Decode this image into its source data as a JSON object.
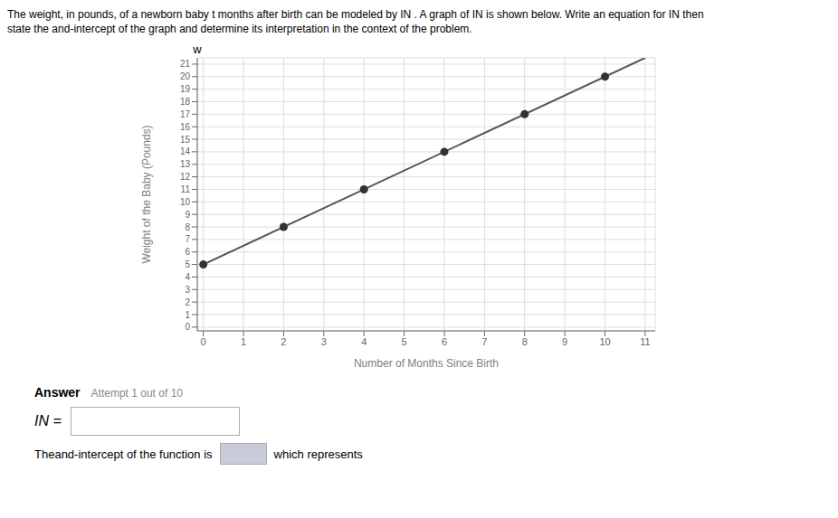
{
  "chart_data": {
    "type": "line",
    "title": "The weight, in pounds, of a newborn baby t months after birth can be modeled by IN . A graph of IN is shown below. Write an equation for IN then",
    "subtitle": "state the and-intercept of the graph and determine its interpretation in the context of the problem.",
    "xlabel": "Number of Months Since Birth",
    "ylabel": "Weight of the Baby (Pounds)",
    "series": [
      {
        "type": "line",
        "color": "#555555",
        "x": [
          0,
          11
        ],
        "values": [
          5,
          21.5
        ]
      },
      {
        "type": "scatter",
        "color": "#333333",
        "x": [
          0,
          2,
          4,
          6,
          8,
          10
        ],
        "values": [
          5,
          8,
          11,
          14,
          17,
          20
        ]
      }
    ],
    "xlim": [
      -0.15,
      11.25
    ],
    "ylim": [
      -0.3,
      21.5
    ],
    "xticks": [
      0,
      1,
      2,
      3,
      4,
      5,
      6,
      7,
      8,
      9,
      10,
      11
    ],
    "yticks": [
      0,
      1,
      2,
      3,
      4,
      5,
      6,
      7,
      8,
      9,
      10,
      11,
      12,
      13,
      14,
      15,
      16,
      17,
      18,
      19,
      20,
      21
    ],
    "grid": true,
    "annotations": [
      "w",
      "Answer",
      "Attempt 1 out of 10",
      "IN =",
      "Theand-intercept of the function is",
      "which represents"
    ]
  }
}
